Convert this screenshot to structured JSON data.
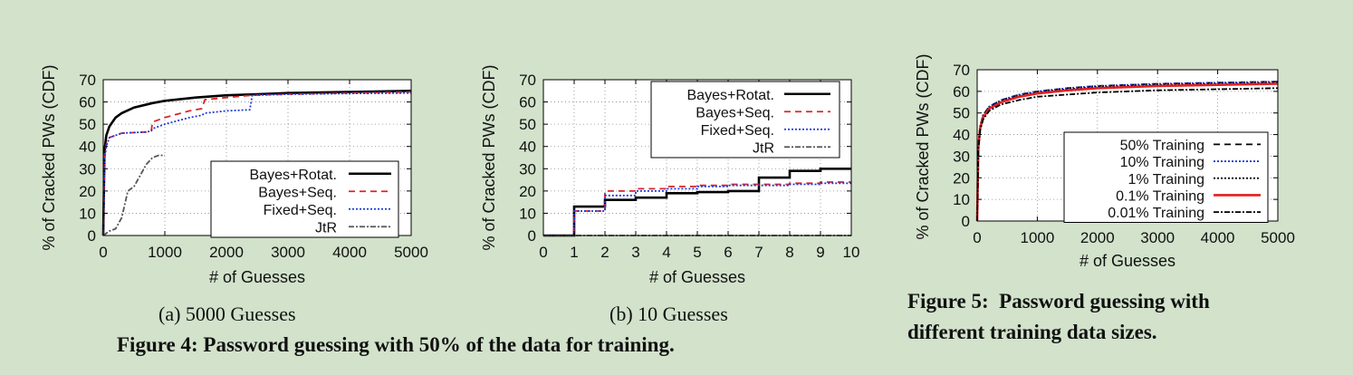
{
  "captions": {
    "sub_a": "(a) 5000 Guesses",
    "sub_b": "(b) 10 Guesses",
    "fig4": "Figure 4: Password guessing with 50% of the data for training.",
    "fig5_line1": "Figure 5:  Password guessing with",
    "fig5_line2": "different training data sizes."
  },
  "chart_data": [
    {
      "type": "line",
      "xlabel": "# of Guesses",
      "ylabel": "% of Cracked PWs (CDF)",
      "xlim": [
        0,
        5000
      ],
      "ylim": [
        0,
        70
      ],
      "xticks": [
        0,
        1000,
        2000,
        3000,
        4000,
        5000
      ],
      "yticks": [
        0,
        10,
        20,
        30,
        40,
        50,
        60,
        70
      ],
      "grid": true,
      "legend_position": "center-right",
      "series": [
        {
          "name": "Bayes+Rotat.",
          "color": "#000000",
          "style": "solid",
          "x": [
            0,
            20,
            50,
            100,
            200,
            300,
            500,
            800,
            1000,
            1500,
            2000,
            2500,
            3000,
            4000,
            5000
          ],
          "y": [
            0,
            38,
            45,
            49,
            53,
            55,
            57.5,
            59.5,
            60.5,
            62,
            63,
            63.5,
            64,
            64.5,
            65
          ]
        },
        {
          "name": "Bayes+Seq.",
          "color": "#d62728",
          "style": "dash",
          "x": [
            0,
            20,
            50,
            100,
            300,
            700,
            780,
            800,
            1000,
            1400,
            1600,
            1650,
            2000,
            2400,
            3000,
            4000,
            5000
          ],
          "y": [
            0,
            36,
            41,
            44,
            46,
            46.5,
            47,
            51,
            53,
            56,
            57,
            61,
            62,
            63,
            63.5,
            64,
            64.5
          ]
        },
        {
          "name": "Fixed+Seq.",
          "color": "#1f3ad8",
          "style": "dot",
          "x": [
            0,
            20,
            50,
            100,
            300,
            700,
            780,
            800,
            1000,
            1400,
            1600,
            1650,
            2000,
            2380,
            2420,
            3000,
            4000,
            5000
          ],
          "y": [
            0,
            34,
            40,
            44,
            46,
            46.5,
            47,
            48,
            50,
            53,
            54,
            55,
            56,
            56.5,
            63,
            63.5,
            63.8,
            64
          ]
        },
        {
          "name": "JtR",
          "color": "#555555",
          "style": "dashdot",
          "x": [
            0,
            50,
            100,
            200,
            300,
            400,
            500,
            600,
            700,
            800,
            900,
            1000
          ],
          "y": [
            0,
            1,
            2,
            3,
            8,
            20,
            22,
            27,
            32,
            35,
            36,
            36
          ]
        }
      ]
    },
    {
      "type": "line",
      "xlabel": "# of Guesses",
      "ylabel": "% of Cracked PWs (CDF)",
      "xlim": [
        0,
        10
      ],
      "ylim": [
        0,
        70
      ],
      "xticks": [
        0,
        1,
        2,
        3,
        4,
        5,
        6,
        7,
        8,
        9,
        10
      ],
      "yticks": [
        0,
        10,
        20,
        30,
        40,
        50,
        60,
        70
      ],
      "grid": true,
      "legend_position": "top-right",
      "series": [
        {
          "name": "Bayes+Rotat.",
          "color": "#000000",
          "style": "solid",
          "step": true,
          "x": [
            0,
            1,
            2,
            3,
            4,
            5,
            6,
            7,
            8,
            9,
            10
          ],
          "y": [
            0,
            13,
            16,
            17,
            19,
            19.5,
            20,
            26,
            29,
            30,
            30
          ]
        },
        {
          "name": "Bayes+Seq.",
          "color": "#d62728",
          "style": "dash",
          "step": true,
          "x": [
            0,
            1,
            2,
            3,
            4,
            5,
            6,
            7,
            8,
            9,
            10
          ],
          "y": [
            0,
            11,
            20,
            21,
            22,
            22.5,
            23,
            23,
            23.5,
            24,
            24
          ]
        },
        {
          "name": "Fixed+Seq.",
          "color": "#1f3ad8",
          "style": "dot",
          "step": true,
          "x": [
            0,
            1,
            2,
            3,
            4,
            5,
            6,
            7,
            8,
            9,
            10
          ],
          "y": [
            0,
            11,
            18,
            20,
            21,
            22,
            22.5,
            22.5,
            23,
            23.5,
            23.5
          ]
        },
        {
          "name": "JtR",
          "color": "#555555",
          "style": "dashdot",
          "step": true,
          "x": [
            0,
            10
          ],
          "y": [
            0,
            0
          ]
        }
      ]
    },
    {
      "type": "line",
      "xlabel": "# of Guesses",
      "ylabel": "% of Cracked PWs (CDF)",
      "xlim": [
        0,
        5000
      ],
      "ylim": [
        0,
        70
      ],
      "xticks": [
        0,
        1000,
        2000,
        3000,
        4000,
        5000
      ],
      "yticks": [
        0,
        10,
        20,
        30,
        40,
        50,
        60,
        70
      ],
      "grid": true,
      "legend_position": "bottom-right",
      "series": [
        {
          "name": "50% Training",
          "color": "#000000",
          "style": "dash",
          "x": [
            0,
            20,
            50,
            100,
            200,
            400,
            700,
            1000,
            1500,
            2000,
            3000,
            4000,
            5000
          ],
          "y": [
            0,
            35,
            44,
            49,
            53,
            56,
            58.5,
            60,
            61.5,
            62.5,
            63.5,
            64,
            64.5
          ]
        },
        {
          "name": "10% Training",
          "color": "#1f3ad8",
          "style": "dot",
          "x": [
            0,
            20,
            50,
            100,
            200,
            400,
            700,
            1000,
            1500,
            2000,
            3000,
            4000,
            5000
          ],
          "y": [
            0,
            35,
            44,
            49,
            53,
            56,
            58.5,
            60,
            61.5,
            62.5,
            63.5,
            64,
            64.5
          ]
        },
        {
          "name": "1% Training",
          "color": "#000000",
          "style": "dot",
          "x": [
            0,
            20,
            50,
            100,
            200,
            400,
            700,
            1000,
            1500,
            2000,
            3000,
            4000,
            5000
          ],
          "y": [
            0,
            35,
            44,
            49,
            52.5,
            55.5,
            58,
            59.5,
            61,
            62,
            63,
            63.5,
            64
          ]
        },
        {
          "name": "0.1% Training",
          "color": "#e02020",
          "style": "solid",
          "x": [
            0,
            20,
            50,
            100,
            200,
            400,
            700,
            1000,
            1500,
            2000,
            3000,
            4000,
            5000
          ],
          "y": [
            0,
            34,
            43,
            48,
            52,
            55,
            57.5,
            59,
            60.5,
            61.5,
            62.5,
            63,
            63.5
          ]
        },
        {
          "name": "0.01% Training",
          "color": "#000000",
          "style": "dashdot",
          "x": [
            0,
            20,
            50,
            100,
            200,
            400,
            700,
            1000,
            1500,
            2000,
            3000,
            4000,
            5000
          ],
          "y": [
            0,
            33,
            42,
            47,
            51,
            54,
            56,
            57.5,
            58.5,
            59.5,
            60.5,
            61,
            61.5
          ]
        }
      ]
    }
  ]
}
